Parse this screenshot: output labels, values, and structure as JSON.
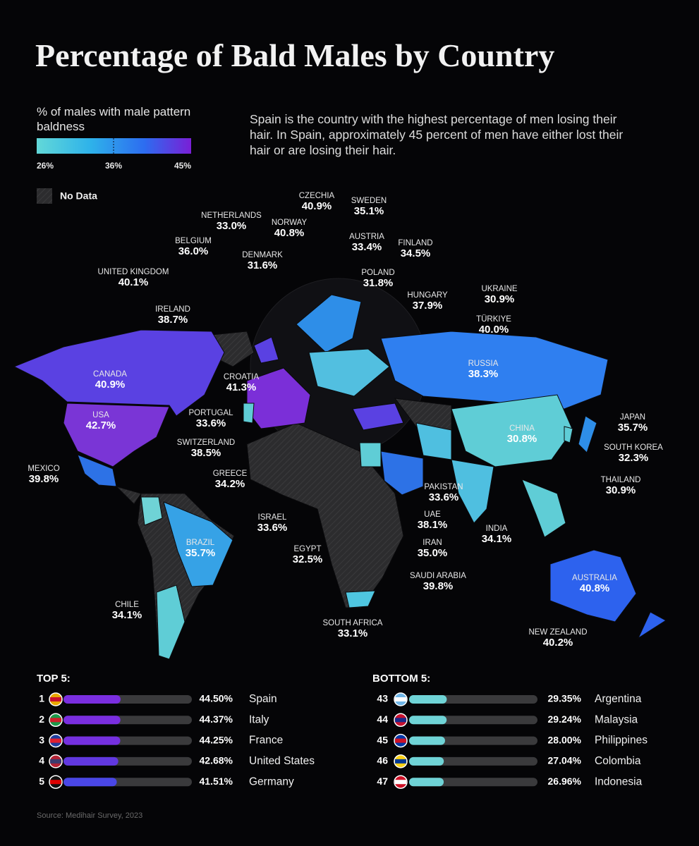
{
  "header": {
    "title": "Percentage of Bald Males by Country",
    "subtitle": "Spain is the country with the highest percentage of men losing their hair. In Spain, approximately 45 percent of men have either lost their hair or are losing their hair."
  },
  "legend": {
    "title": "% of males with male pattern baldness",
    "ticks": [
      "26%",
      "36%",
      "45%"
    ],
    "no_data": "No Data"
  },
  "map": {
    "countries": [
      {
        "name": "CZECHIA",
        "value": "40.9%"
      },
      {
        "name": "SWEDEN",
        "value": "35.1%"
      },
      {
        "name": "NETHERLANDS",
        "value": "33.0%"
      },
      {
        "name": "NORWAY",
        "value": "40.8%"
      },
      {
        "name": "AUSTRIA",
        "value": "33.4%"
      },
      {
        "name": "FINLAND",
        "value": "34.5%"
      },
      {
        "name": "BELGIUM",
        "value": "36.0%"
      },
      {
        "name": "DENMARK",
        "value": "31.6%"
      },
      {
        "name": "POLAND",
        "value": "31.8%"
      },
      {
        "name": "UNITED KINGDOM",
        "value": "40.1%"
      },
      {
        "name": "HUNGARY",
        "value": "37.9%"
      },
      {
        "name": "UKRAINE",
        "value": "30.9%"
      },
      {
        "name": "IRELAND",
        "value": "38.7%"
      },
      {
        "name": "TÜRKIYE",
        "value": "40.0%"
      },
      {
        "name": "CANADA",
        "value": "40.9%"
      },
      {
        "name": "RUSSIA",
        "value": "38.3%"
      },
      {
        "name": "CROATIA",
        "value": "41.3%"
      },
      {
        "name": "USA",
        "value": "42.7%"
      },
      {
        "name": "PORTUGAL",
        "value": "33.6%"
      },
      {
        "name": "JAPAN",
        "value": "35.7%"
      },
      {
        "name": "CHINA",
        "value": "30.8%"
      },
      {
        "name": "SWITZERLAND",
        "value": "38.5%"
      },
      {
        "name": "SOUTH KOREA",
        "value": "32.3%"
      },
      {
        "name": "MEXICO",
        "value": "39.8%"
      },
      {
        "name": "GREECE",
        "value": "34.2%"
      },
      {
        "name": "THAILAND",
        "value": "30.9%"
      },
      {
        "name": "PAKISTAN",
        "value": "33.6%"
      },
      {
        "name": "UAE",
        "value": "38.1%"
      },
      {
        "name": "ISRAEL",
        "value": "33.6%"
      },
      {
        "name": "INDIA",
        "value": "34.1%"
      },
      {
        "name": "BRAZIL",
        "value": "35.7%"
      },
      {
        "name": "IRAN",
        "value": "35.0%"
      },
      {
        "name": "EGYPT",
        "value": "32.5%"
      },
      {
        "name": "AUSTRALIA",
        "value": "40.8%"
      },
      {
        "name": "SAUDI ARABIA",
        "value": "39.8%"
      },
      {
        "name": "CHILE",
        "value": "34.1%"
      },
      {
        "name": "SOUTH AFRICA",
        "value": "33.1%"
      },
      {
        "name": "NEW ZEALAND",
        "value": "40.2%"
      }
    ]
  },
  "top5": {
    "title": "TOP 5:",
    "xlim": [
      0,
      100
    ],
    "rows": [
      {
        "rank": 1,
        "value": 44.5,
        "label": "44.50%",
        "country": "Spain",
        "color": "#7a2ee0"
      },
      {
        "rank": 2,
        "value": 44.37,
        "label": "44.37%",
        "country": "Italy",
        "color": "#7a2ee0"
      },
      {
        "rank": 3,
        "value": 44.25,
        "label": "44.25%",
        "country": "France",
        "color": "#7530e0"
      },
      {
        "rank": 4,
        "value": 42.68,
        "label": "42.68%",
        "country": "United States",
        "color": "#6138e0"
      },
      {
        "rank": 5,
        "value": 41.51,
        "label": "41.51%",
        "country": "Germany",
        "color": "#4a47e6"
      }
    ]
  },
  "bottom5": {
    "title": "BOTTOM 5:",
    "xlim": [
      0,
      100
    ],
    "rows": [
      {
        "rank": 43,
        "value": 29.35,
        "label": "29.35%",
        "country": "Argentina",
        "color": "#6fd3d6"
      },
      {
        "rank": 44,
        "value": 29.24,
        "label": "29.24%",
        "country": "Malaysia",
        "color": "#6fd3d6"
      },
      {
        "rank": 45,
        "value": 28.0,
        "label": "28.00%",
        "country": "Philippines",
        "color": "#6fd3d6"
      },
      {
        "rank": 46,
        "value": 27.04,
        "label": "27.04%",
        "country": "Colombia",
        "color": "#6fd3d6"
      },
      {
        "rank": 47,
        "value": 26.96,
        "label": "26.96%",
        "country": "Indonesia",
        "color": "#6fd3d6"
      }
    ]
  },
  "source": "Source: Medihair Survey, 2023"
}
